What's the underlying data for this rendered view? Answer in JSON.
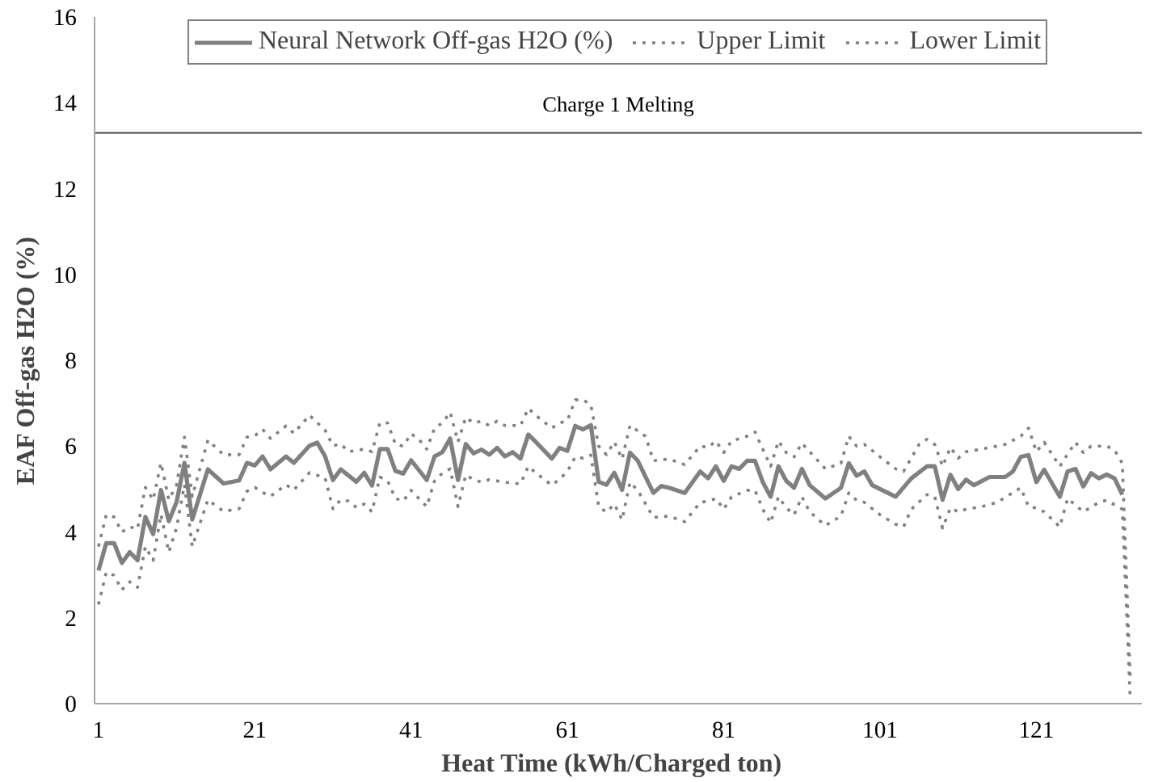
{
  "chart_data": {
    "type": "line",
    "xlabel": "Heat Time  (kWh/Charged  ton)",
    "ylabel": "EAF Off-gas H2O (%)",
    "xlim": [
      0.5,
      134.5
    ],
    "xticks": [
      1,
      21,
      41,
      61,
      81,
      101,
      121
    ],
    "ylim": [
      0,
      16
    ],
    "yticks": [
      0,
      2,
      4,
      6,
      8,
      10,
      12,
      14,
      16
    ],
    "grid": false,
    "legend": "top",
    "marker": "none",
    "ref_lines": [
      {
        "axis": "y",
        "value": 13.3,
        "label": "Charge 1 Melting",
        "color": "#404040"
      }
    ],
    "series": [
      {
        "name": "Neural Network Off-gas H2O (%)",
        "color": "#808080",
        "line_style": "solid",
        "x": [
          1,
          2,
          3,
          4,
          5,
          6,
          7,
          8,
          9,
          10,
          11,
          12,
          13,
          15,
          17,
          19,
          20,
          21,
          22,
          23,
          25,
          26,
          28,
          29,
          30,
          31,
          32,
          34,
          35,
          36,
          37,
          38,
          39,
          40,
          41,
          43,
          44,
          45,
          46,
          47,
          48,
          49,
          50,
          51,
          52,
          53,
          54,
          55,
          56,
          57,
          59,
          60,
          61,
          62,
          63,
          64,
          65,
          66,
          67,
          68,
          69,
          70,
          72,
          73,
          74,
          76,
          78,
          79,
          80,
          81,
          82,
          83,
          84,
          85,
          86,
          87,
          88,
          89,
          90,
          91,
          92,
          94,
          96,
          97,
          98,
          99,
          100,
          103,
          105,
          107,
          108,
          109,
          110,
          111,
          112,
          113,
          115,
          117,
          118,
          119,
          120,
          121,
          122,
          124,
          125,
          126,
          127,
          128,
          129,
          130,
          131,
          132
        ],
        "values": [
          3.1,
          3.74,
          3.74,
          3.28,
          3.53,
          3.34,
          4.35,
          3.95,
          4.98,
          4.25,
          4.7,
          5.61,
          4.29,
          5.46,
          5.13,
          5.2,
          5.61,
          5.55,
          5.76,
          5.46,
          5.76,
          5.61,
          6.01,
          6.08,
          5.76,
          5.21,
          5.46,
          5.17,
          5.38,
          5.08,
          5.93,
          5.93,
          5.42,
          5.36,
          5.67,
          5.21,
          5.76,
          5.86,
          6.18,
          5.21,
          6.05,
          5.83,
          5.92,
          5.8,
          5.96,
          5.76,
          5.86,
          5.71,
          6.27,
          6.09,
          5.71,
          5.96,
          5.89,
          6.47,
          6.39,
          6.49,
          5.17,
          5.1,
          5.38,
          4.98,
          5.85,
          5.66,
          4.91,
          5.07,
          5.03,
          4.91,
          5.41,
          5.25,
          5.53,
          5.19,
          5.53,
          5.47,
          5.66,
          5.66,
          5.16,
          4.82,
          5.53,
          5.19,
          5.03,
          5.47,
          5.09,
          4.78,
          5.03,
          5.6,
          5.31,
          5.41,
          5.09,
          4.82,
          5.25,
          5.53,
          5.53,
          4.75,
          5.33,
          5.0,
          5.22,
          5.09,
          5.28,
          5.28,
          5.41,
          5.75,
          5.79,
          5.16,
          5.45,
          4.82,
          5.41,
          5.47,
          5.06,
          5.37,
          5.25,
          5.34,
          5.25,
          4.87
        ]
      },
      {
        "name": "Upper Limit",
        "color": "#808080",
        "line_style": "dotted",
        "x": [
          1,
          2,
          3,
          4,
          5,
          6,
          7,
          8,
          9,
          10,
          11,
          12,
          13,
          15,
          17,
          19,
          20,
          21,
          22,
          23,
          25,
          26,
          28,
          30,
          31,
          32,
          33,
          35,
          36,
          37,
          38,
          39,
          40,
          41,
          42,
          43,
          44,
          45,
          46,
          47,
          48,
          49,
          50,
          51,
          52,
          53,
          55,
          56,
          57,
          59,
          60,
          61,
          62,
          63,
          64,
          65,
          66,
          67,
          68,
          69,
          71,
          72,
          74,
          76,
          78,
          79,
          80,
          81,
          82,
          84,
          85,
          87,
          88,
          89,
          90,
          91,
          92,
          94,
          96,
          97,
          98,
          99,
          101,
          103,
          104,
          106,
          107,
          108,
          109,
          110,
          111,
          112,
          114,
          117,
          119,
          120,
          121,
          122,
          124,
          126,
          127,
          128,
          130,
          131,
          132,
          133
        ],
        "values": [
          3.66,
          4.4,
          4.35,
          4.0,
          4.12,
          4.07,
          5.04,
          4.75,
          5.61,
          4.75,
          5.1,
          6.21,
          4.83,
          6.14,
          5.8,
          5.8,
          6.21,
          6.24,
          6.39,
          6.18,
          6.47,
          6.3,
          6.72,
          6.37,
          6.01,
          6.05,
          5.87,
          5.93,
          5.87,
          6.54,
          6.54,
          6.04,
          6.0,
          6.29,
          6.16,
          5.93,
          6.42,
          6.54,
          6.79,
          6.1,
          6.67,
          6.54,
          6.58,
          6.48,
          6.58,
          6.48,
          6.48,
          6.88,
          6.71,
          6.42,
          6.54,
          6.6,
          7.08,
          7.08,
          6.96,
          6.0,
          5.8,
          6.1,
          5.7,
          6.48,
          6.23,
          5.66,
          5.7,
          5.57,
          6.0,
          5.97,
          6.12,
          5.85,
          6.12,
          6.23,
          6.33,
          5.53,
          6.12,
          5.85,
          5.75,
          6.07,
          5.87,
          5.47,
          5.6,
          6.23,
          6.0,
          6.04,
          5.75,
          5.47,
          5.41,
          6.04,
          6.16,
          6.04,
          5.53,
          5.97,
          5.72,
          5.87,
          5.93,
          6.04,
          6.23,
          6.42,
          5.87,
          6.09,
          5.53,
          6.09,
          5.85,
          6.0,
          6.0,
          5.91,
          5.6,
          0.64
        ]
      },
      {
        "name": "Lower Limit",
        "color": "#808080",
        "line_style": "dotted",
        "x": [
          1,
          2,
          3,
          4,
          5,
          6,
          7,
          8,
          9,
          10,
          11,
          12,
          13,
          15,
          17,
          19,
          20,
          21,
          22,
          23,
          25,
          26,
          28,
          30,
          31,
          32,
          33,
          34,
          35,
          36,
          37,
          38,
          39,
          40,
          41,
          43,
          44,
          45,
          46,
          47,
          48,
          49,
          50,
          51,
          53,
          55,
          56,
          57,
          59,
          60,
          61,
          62,
          63,
          64,
          65,
          66,
          67,
          68,
          69,
          70,
          72,
          74,
          76,
          78,
          79,
          80,
          81,
          82,
          84,
          85,
          86,
          87,
          88,
          89,
          90,
          91,
          92,
          94,
          96,
          97,
          98,
          99,
          101,
          103,
          104,
          105,
          107,
          108,
          109,
          110,
          111,
          112,
          114,
          116,
          119,
          120,
          121,
          122,
          124,
          125,
          127,
          129,
          130,
          132,
          133
        ],
        "values": [
          2.31,
          3.06,
          2.99,
          2.65,
          2.84,
          2.71,
          3.66,
          3.34,
          4.41,
          3.53,
          4.1,
          5.1,
          3.66,
          4.75,
          4.48,
          4.54,
          4.95,
          5.04,
          4.92,
          4.83,
          5.1,
          4.98,
          5.38,
          5.26,
          4.54,
          4.75,
          4.72,
          4.57,
          4.65,
          4.47,
          5.28,
          5.19,
          4.78,
          4.72,
          4.97,
          4.59,
          5.19,
          5.37,
          5.47,
          4.59,
          5.33,
          5.22,
          5.16,
          5.22,
          5.16,
          5.12,
          5.53,
          5.37,
          5.09,
          5.23,
          5.41,
          5.75,
          5.72,
          5.79,
          4.59,
          4.46,
          4.65,
          4.28,
          5.16,
          4.97,
          4.34,
          4.37,
          4.24,
          4.69,
          4.72,
          4.78,
          4.53,
          4.82,
          4.97,
          4.97,
          4.53,
          4.21,
          4.82,
          4.56,
          4.4,
          4.82,
          4.47,
          4.15,
          4.37,
          4.91,
          4.74,
          4.69,
          4.4,
          4.18,
          4.12,
          4.53,
          4.87,
          4.82,
          4.09,
          4.56,
          4.47,
          4.53,
          4.59,
          4.69,
          5.03,
          4.59,
          4.56,
          4.47,
          4.12,
          4.78,
          4.47,
          4.69,
          4.74,
          4.53,
          0.12
        ]
      }
    ]
  }
}
